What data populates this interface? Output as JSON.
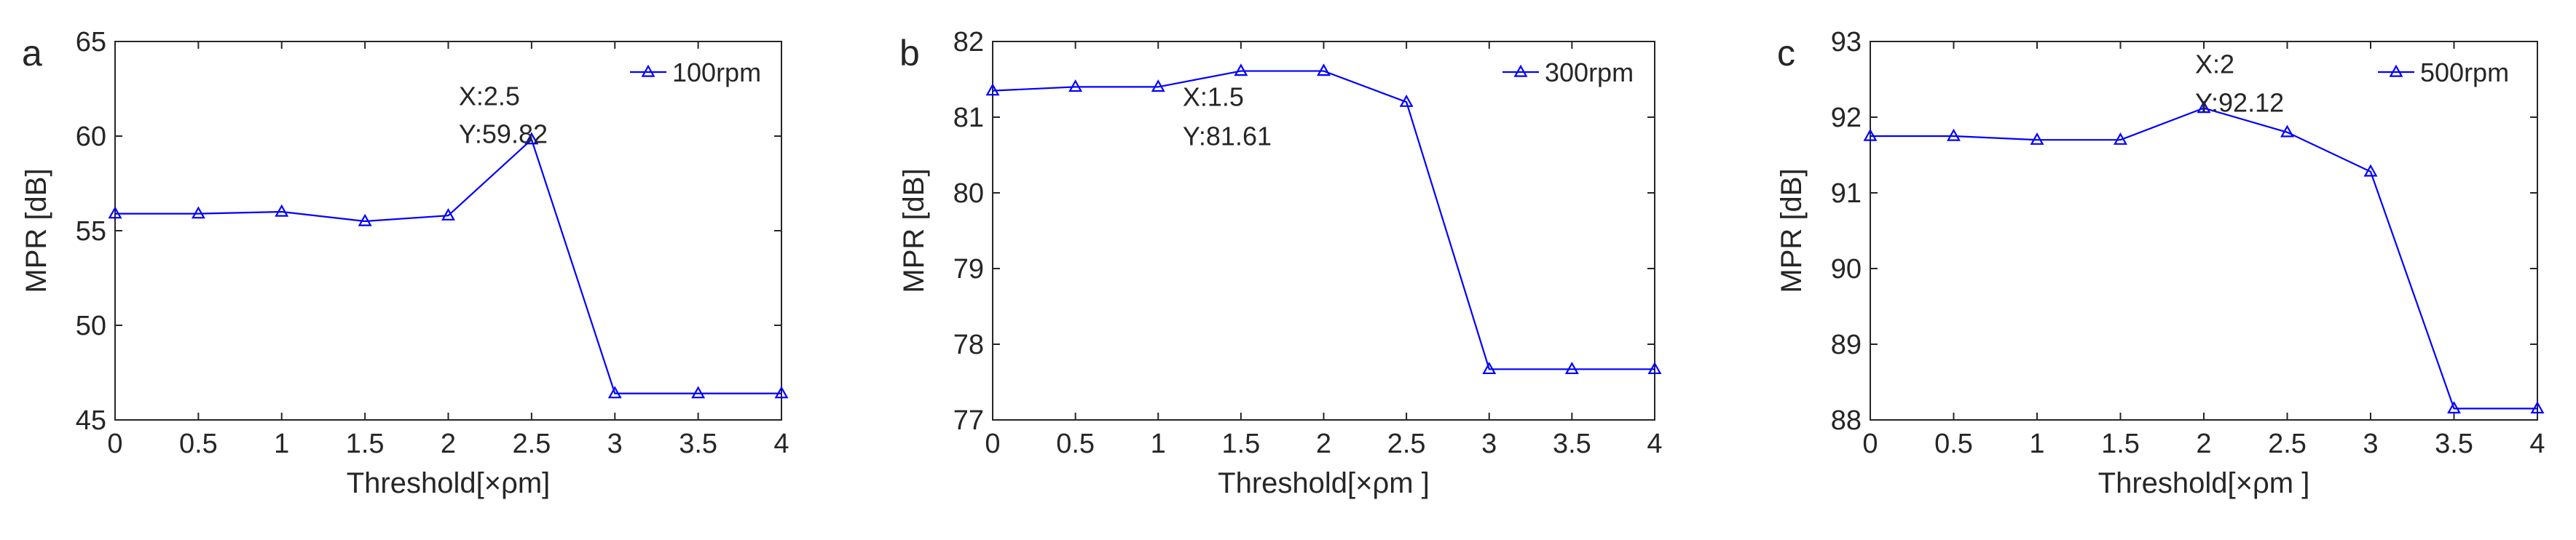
{
  "chart_data": [
    {
      "type": "line",
      "panel_label": "a",
      "xlabel": "Threshold[×ρm]",
      "ylabel": "MPR [dB]",
      "x": [
        0,
        0.5,
        1,
        1.5,
        2,
        2.5,
        3,
        3.5,
        4
      ],
      "xticks": [
        "0",
        "0.5",
        "1",
        "1.5",
        "2",
        "2.5",
        "3",
        "3.5",
        "4"
      ],
      "xlim": [
        0,
        4
      ],
      "ylim": [
        45,
        65
      ],
      "yticks": [
        "45",
        "50",
        "55",
        "60",
        "65"
      ],
      "series": [
        {
          "name": "100rpm",
          "color": "#0000ff",
          "marker": "triangle",
          "values": [
            55.9,
            55.9,
            56.0,
            55.5,
            55.8,
            59.82,
            46.4,
            46.4,
            46.4
          ]
        }
      ],
      "annotation": {
        "x_text": "X:2.5",
        "y_text": "Y:59.82",
        "x": 2.5,
        "y": 59.82
      },
      "legend_position": "top-right",
      "grid": false
    },
    {
      "type": "line",
      "panel_label": "b",
      "xlabel": "Threshold[×ρm ]",
      "ylabel": "MPR [dB]",
      "x": [
        0,
        0.5,
        1,
        1.5,
        2,
        2.5,
        3,
        3.5,
        4
      ],
      "xticks": [
        "0",
        "0.5",
        "1",
        "1.5",
        "2",
        "2.5",
        "3",
        "3.5",
        "4"
      ],
      "xlim": [
        0,
        4
      ],
      "ylim": [
        77,
        82
      ],
      "yticks": [
        "77",
        "78",
        "79",
        "80",
        "81",
        "82"
      ],
      "series": [
        {
          "name": "300rpm",
          "color": "#0000ff",
          "marker": "triangle",
          "values": [
            81.35,
            81.4,
            81.4,
            81.61,
            81.61,
            81.2,
            77.67,
            77.67,
            77.67
          ]
        }
      ],
      "annotation": {
        "x_text": "X:1.5",
        "y_text": "Y:81.61",
        "x": 1.5,
        "y": 81.61
      },
      "legend_position": "top-right",
      "grid": false
    },
    {
      "type": "line",
      "panel_label": "c",
      "xlabel": "Threshold[×ρm ]",
      "ylabel": "MPR [dB]",
      "x": [
        0,
        0.5,
        1,
        1.5,
        2,
        2.5,
        3,
        3.5,
        4
      ],
      "xticks": [
        "0",
        "0.5",
        "1",
        "1.5",
        "2",
        "2.5",
        "3",
        "3.5",
        "4"
      ],
      "xlim": [
        0,
        4
      ],
      "ylim": [
        88,
        93
      ],
      "yticks": [
        "88",
        "89",
        "90",
        "91",
        "92",
        "93"
      ],
      "series": [
        {
          "name": "500rpm",
          "color": "#0000ff",
          "marker": "triangle",
          "values": [
            91.75,
            91.75,
            91.7,
            91.7,
            92.12,
            91.8,
            91.28,
            88.15,
            88.15
          ]
        }
      ],
      "annotation": {
        "x_text": "X:2",
        "y_text": "Y:92.12",
        "x": 2,
        "y": 92.12
      },
      "legend_position": "top-right",
      "grid": false
    }
  ]
}
